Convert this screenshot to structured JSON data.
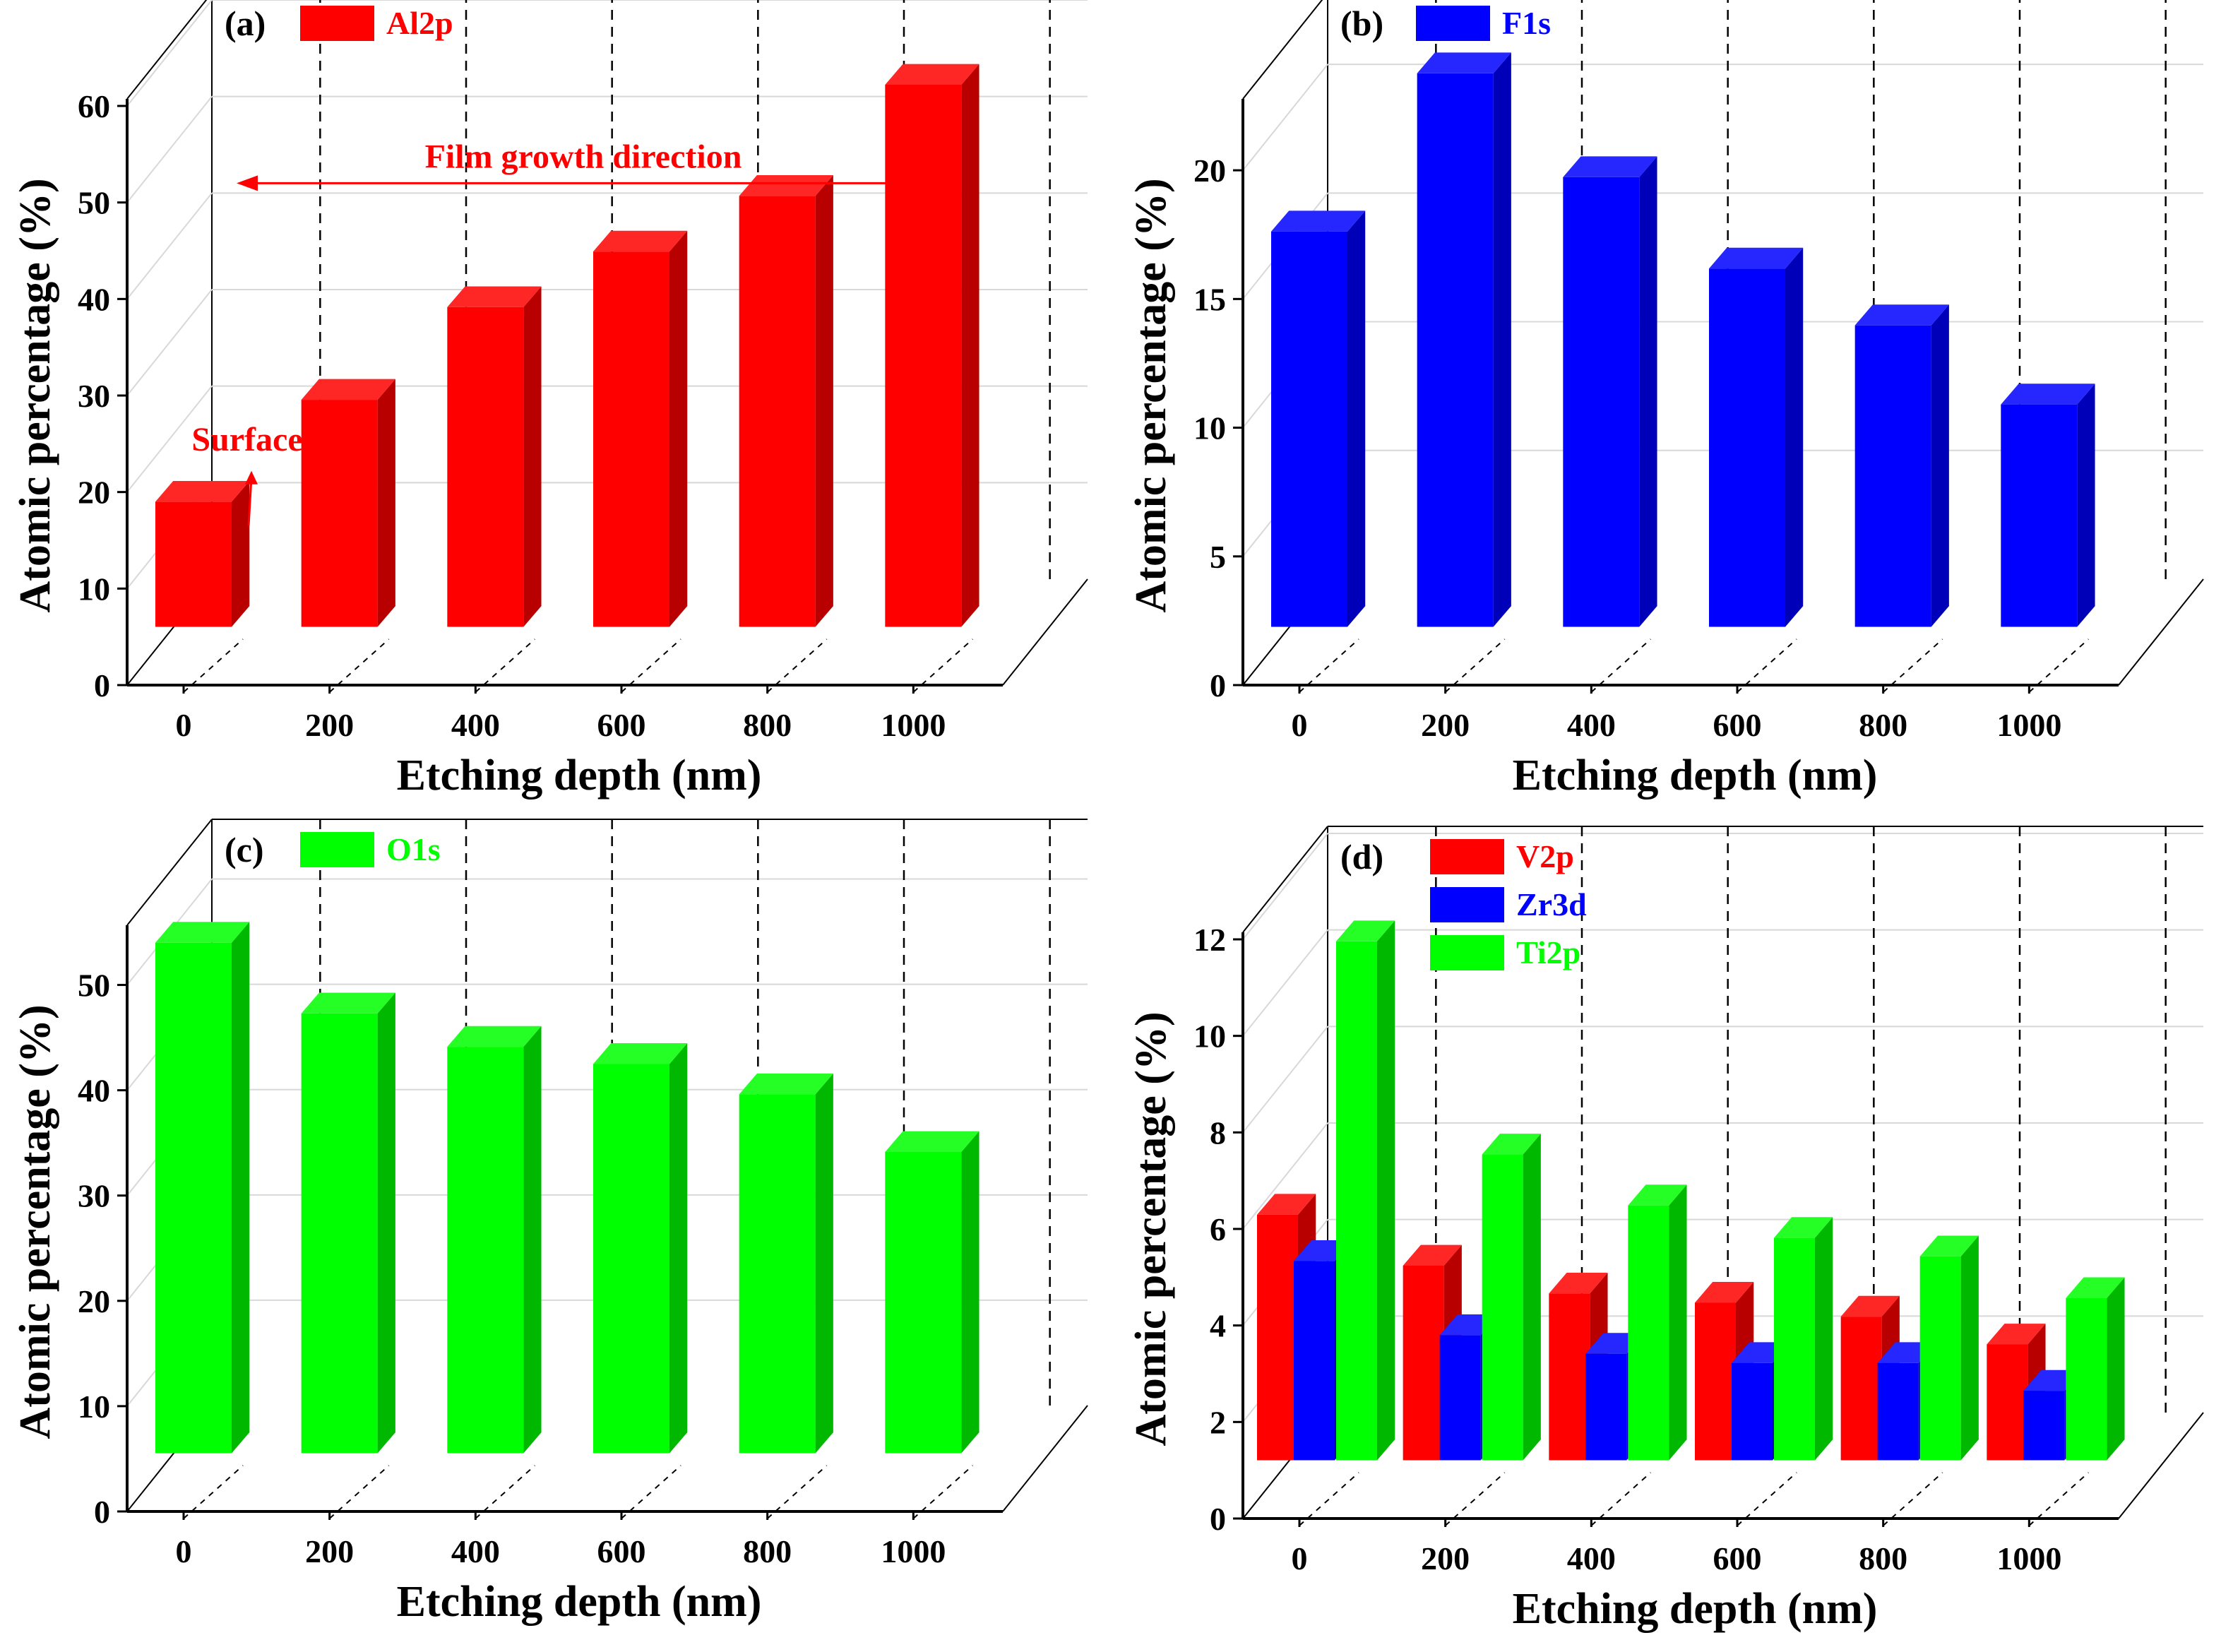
{
  "colors": {
    "red": "#ff0000",
    "blue": "#0000ff",
    "green": "#00ff00"
  },
  "chart_data": [
    {
      "id": "a",
      "type": "bar",
      "panel_label": "(a)",
      "xlabel": "Etching depth (nm)",
      "ylabel": "Atomic percentage (%)",
      "categories": [
        "0",
        "200",
        "400",
        "600",
        "800",
        "1000"
      ],
      "ylim": [
        0,
        60
      ],
      "yticks": [
        0,
        10,
        20,
        30,
        40,
        50,
        60
      ],
      "series": [
        {
          "name": "Al2p",
          "color": "#ff0000",
          "values": [
            13.5,
            24.5,
            34.5,
            40.5,
            46.5,
            58.5
          ]
        }
      ],
      "annotations": [
        {
          "text": "Film growth direction",
          "kind": "arrow-left",
          "color": "#ff0000"
        },
        {
          "text": "Surface",
          "kind": "arrow-up",
          "color": "#ff0000"
        }
      ]
    },
    {
      "id": "b",
      "type": "bar",
      "panel_label": "(b)",
      "xlabel": "Etching depth (nm)",
      "ylabel": "Atomic percentage (%)",
      "categories": [
        "0",
        "200",
        "400",
        "600",
        "800",
        "1000"
      ],
      "ylim": [
        0,
        22.5
      ],
      "yticks": [
        0,
        5,
        10,
        15,
        20
      ],
      "series": [
        {
          "name": "F1s",
          "color": "#0000ff",
          "values": [
            16,
            22.4,
            18.2,
            14.5,
            12.2,
            9
          ]
        }
      ],
      "annotations": []
    },
    {
      "id": "c",
      "type": "bar",
      "panel_label": "(c)",
      "xlabel": "Etching depth (nm)",
      "ylabel": "Atomic percentage (%)",
      "categories": [
        "0",
        "200",
        "400",
        "600",
        "800",
        "1000"
      ],
      "ylim": [
        0,
        55
      ],
      "yticks": [
        0,
        10,
        20,
        30,
        40,
        50
      ],
      "series": [
        {
          "name": "O1s",
          "color": "#00ff00",
          "values": [
            50.5,
            43.5,
            40.2,
            38.5,
            35.5,
            29.8
          ]
        }
      ],
      "annotations": []
    },
    {
      "id": "d",
      "type": "bar",
      "panel_label": "(d)",
      "xlabel": "Etching depth (nm)",
      "ylabel": "Atomic percentage (%)",
      "categories": [
        "0",
        "200",
        "400",
        "600",
        "800",
        "1000"
      ],
      "ylim": [
        0,
        12
      ],
      "yticks": [
        0,
        2,
        4,
        6,
        8,
        10,
        12
      ],
      "series": [
        {
          "name": "V2p",
          "color": "#ff0000",
          "values": [
            5.3,
            4.2,
            3.6,
            3.4,
            3.1,
            2.5
          ]
        },
        {
          "name": "Zr3d",
          "color": "#0000ff",
          "values": [
            4.3,
            2.7,
            2.3,
            2.1,
            2.1,
            1.5
          ]
        },
        {
          "name": "Ti2p",
          "color": "#00ff00",
          "values": [
            11.2,
            6.6,
            5.5,
            4.8,
            4.4,
            3.5
          ]
        }
      ],
      "annotations": []
    }
  ]
}
